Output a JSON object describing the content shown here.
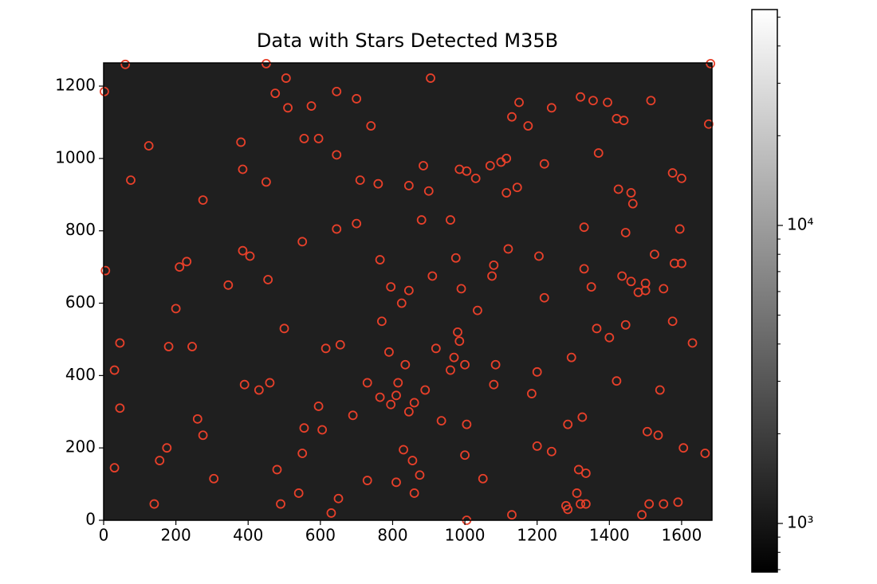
{
  "chart_data": {
    "type": "scatter",
    "title": "Data with Stars Detected M35B",
    "color": "#e8402a",
    "marker": "open-circle",
    "image_color": "#1f1f1f",
    "x": [
      2,
      60,
      450,
      1680,
      505,
      905,
      475,
      510,
      575,
      645,
      700,
      740,
      125,
      380,
      555,
      595,
      645,
      385,
      450,
      710,
      760,
      75,
      275,
      645,
      700,
      550,
      385,
      405,
      230,
      210,
      345,
      455,
      5,
      200,
      500,
      180,
      245,
      45,
      615,
      655,
      30,
      390,
      430,
      460,
      45,
      260,
      595,
      275,
      555,
      605,
      550,
      175,
      155,
      30,
      305,
      480,
      140,
      490,
      540,
      630,
      650,
      690,
      730,
      730,
      765,
      770,
      790,
      795,
      825,
      765,
      795,
      810,
      815,
      835,
      845,
      845,
      860,
      880,
      885,
      845,
      900,
      910,
      890,
      920,
      935,
      830,
      855,
      875,
      860,
      810,
      960,
      960,
      970,
      980,
      985,
      990,
      975,
      985,
      1005,
      1030,
      1035,
      1000,
      1005,
      1000,
      1005,
      1050,
      1070,
      1080,
      1075,
      1080,
      1085,
      1100,
      1115,
      1115,
      1120,
      1145,
      1130,
      1150,
      1175,
      1185,
      1200,
      1200,
      1205,
      1220,
      1220,
      1240,
      1240,
      1130,
      1280,
      1285,
      1285,
      1295,
      1310,
      1315,
      1320,
      1335,
      1335,
      1325,
      1320,
      1330,
      1330,
      1350,
      1355,
      1365,
      1370,
      1395,
      1400,
      1420,
      1440,
      1425,
      1420,
      1435,
      1445,
      1445,
      1460,
      1460,
      1465,
      1480,
      1500,
      1500,
      1490,
      1505,
      1510,
      1515,
      1525,
      1535,
      1540,
      1550,
      1550,
      1575,
      1575,
      1580,
      1595,
      1600,
      1600,
      1590,
      1605,
      1630,
      1675,
      1665
    ],
    "values": [
      1185,
      1260,
      1262,
      1262,
      1222,
      1222,
      1180,
      1140,
      1145,
      1185,
      1165,
      1090,
      1035,
      1045,
      1055,
      1055,
      1010,
      970,
      935,
      940,
      930,
      940,
      885,
      805,
      820,
      770,
      745,
      730,
      715,
      700,
      650,
      665,
      690,
      585,
      530,
      480,
      480,
      490,
      475,
      485,
      415,
      375,
      360,
      380,
      310,
      280,
      315,
      235,
      255,
      250,
      185,
      200,
      165,
      145,
      115,
      140,
      45,
      45,
      75,
      20,
      60,
      290,
      380,
      110,
      720,
      550,
      465,
      645,
      600,
      340,
      320,
      345,
      380,
      430,
      635,
      300,
      325,
      830,
      980,
      925,
      910,
      675,
      360,
      475,
      275,
      195,
      165,
      125,
      75,
      105,
      830,
      415,
      450,
      520,
      495,
      640,
      725,
      970,
      965,
      945,
      580,
      430,
      265,
      180,
      0,
      115,
      980,
      705,
      675,
      375,
      430,
      990,
      1000,
      905,
      750,
      920,
      1115,
      1155,
      1090,
      350,
      410,
      205,
      730,
      985,
      615,
      190,
      1140,
      15,
      40,
      30,
      265,
      450,
      75,
      140,
      45,
      45,
      130,
      285,
      1170,
      810,
      695,
      645,
      1160,
      530,
      1015,
      1155,
      505,
      1110,
      1105,
      915,
      385,
      675,
      795,
      540,
      905,
      660,
      875,
      630,
      655,
      635,
      15,
      245,
      45,
      1160,
      735,
      235,
      360,
      640,
      45,
      960,
      550,
      710,
      805,
      710,
      945,
      50,
      200,
      490,
      1095,
      185
    ],
    "xlim": [
      0,
      1684
    ],
    "ylim": [
      0,
      1264
    ],
    "xticks": [
      0,
      200,
      400,
      600,
      800,
      1000,
      1200,
      1400,
      1600
    ],
    "yticks": [
      0,
      200,
      400,
      600,
      800,
      1000,
      1200
    ],
    "colorbar": {
      "scale": "log",
      "lim": [
        687,
        53000
      ],
      "ticks": [
        {
          "value": 1000,
          "label": "10³"
        },
        {
          "value": 10000,
          "label": "10⁴"
        }
      ],
      "minor_ticks": [
        700,
        800,
        900,
        2000,
        3000,
        4000,
        5000,
        6000,
        7000,
        8000,
        9000,
        20000,
        30000,
        40000,
        50000
      ]
    }
  }
}
